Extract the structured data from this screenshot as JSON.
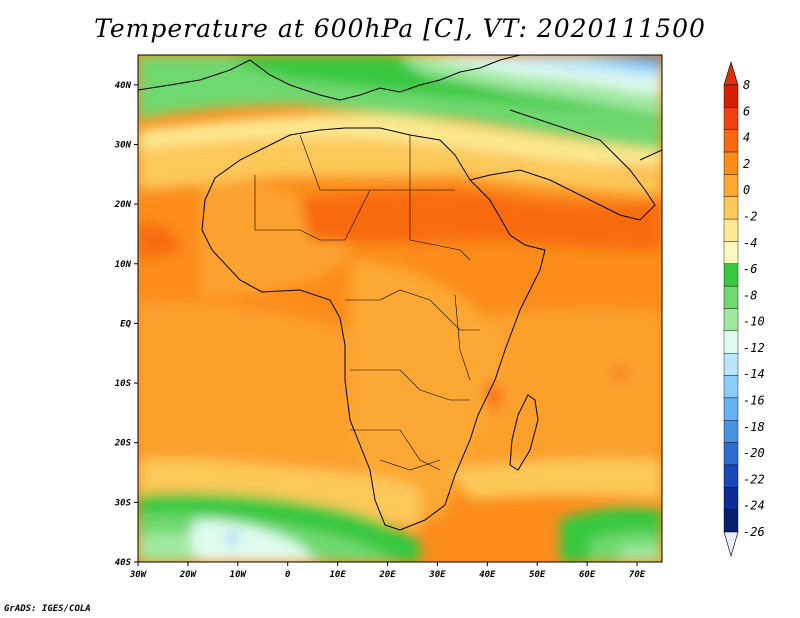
{
  "title": "Temperature at 600hPa [C], VT: 2020111500",
  "credit": "GrADS: IGES/COLA",
  "map": {
    "lon_range": [
      -30,
      75
    ],
    "lat_range": [
      -40,
      45
    ],
    "lon_ticks": [
      {
        "v": -30,
        "label": "30W"
      },
      {
        "v": -20,
        "label": "20W"
      },
      {
        "v": -10,
        "label": "10W"
      },
      {
        "v": 0,
        "label": "0"
      },
      {
        "v": 10,
        "label": "10E"
      },
      {
        "v": 20,
        "label": "20E"
      },
      {
        "v": 30,
        "label": "30E"
      },
      {
        "v": 40,
        "label": "40E"
      },
      {
        "v": 50,
        "label": "50E"
      },
      {
        "v": 60,
        "label": "60E"
      },
      {
        "v": 70,
        "label": "70E"
      }
    ],
    "lat_ticks": [
      {
        "v": 40,
        "label": "40N"
      },
      {
        "v": 30,
        "label": "30N"
      },
      {
        "v": 20,
        "label": "20N"
      },
      {
        "v": 10,
        "label": "10N"
      },
      {
        "v": 0,
        "label": "EQ"
      },
      {
        "v": -10,
        "label": "10S"
      },
      {
        "v": -20,
        "label": "20S"
      },
      {
        "v": -30,
        "label": "30S"
      },
      {
        "v": -40,
        "label": "40S"
      }
    ]
  },
  "colorbar": {
    "labels": [
      "8",
      "6",
      "4",
      "2",
      "0",
      "-2",
      "-4",
      "-6",
      "-8",
      "-10",
      "-12",
      "-14",
      "-16",
      "-18",
      "-20",
      "-22",
      "-24",
      "-26"
    ],
    "colors": [
      "#d62000",
      "#f04010",
      "#f86a10",
      "#fb8c1a",
      "#fca832",
      "#fcc85a",
      "#fce890",
      "#fcf8c0",
      "#38c840",
      "#70d870",
      "#a0e8a0",
      "#e0fcf0",
      "#b8e4fc",
      "#8cccf8",
      "#64b0f0",
      "#4890e0",
      "#2c6cd0",
      "#1848b8",
      "#0c2c98",
      "#082070"
    ],
    "over_color": "#e03010",
    "under_color": "#e8ecfc"
  }
}
